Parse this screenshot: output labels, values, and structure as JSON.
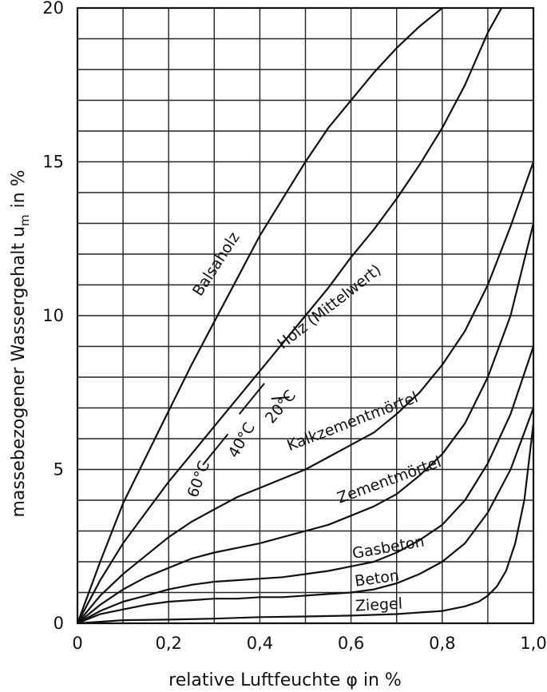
{
  "chart_data": {
    "type": "line",
    "xlabel": "relative Luftfeuchte φ in %",
    "ylabel": "massebezogener Wassergehalt u",
    "ylabel_sub": "m",
    "ylabel_unit": "in %",
    "xlim": [
      0,
      1.0
    ],
    "ylim": [
      0,
      20
    ],
    "x_ticks": [
      0,
      0.2,
      0.4,
      0.6,
      0.8,
      1.0
    ],
    "x_tick_labels": [
      "0",
      "0,2",
      "0,4",
      "0,6",
      "0,8",
      "1,0"
    ],
    "y_ticks": [
      0,
      5,
      10,
      15,
      20
    ],
    "y_tick_labels": [
      "0",
      "5",
      "10",
      "15",
      "20"
    ],
    "grid": true,
    "series": [
      {
        "name": "Balsaholz",
        "x": [
          0,
          0.05,
          0.1,
          0.15,
          0.2,
          0.25,
          0.3,
          0.35,
          0.4,
          0.45,
          0.5,
          0.55,
          0.6,
          0.65,
          0.7,
          0.75,
          0.8
        ],
        "y": [
          0,
          2.0,
          3.9,
          5.4,
          6.9,
          8.4,
          9.8,
          11.2,
          12.6,
          13.8,
          15.0,
          16.1,
          17.0,
          17.9,
          18.7,
          19.4,
          20.0
        ]
      },
      {
        "name": "Holz (Mittelwert)",
        "x": [
          0,
          0.05,
          0.1,
          0.15,
          0.2,
          0.25,
          0.3,
          0.35,
          0.4,
          0.45,
          0.5,
          0.55,
          0.6,
          0.65,
          0.7,
          0.75,
          0.8,
          0.85,
          0.9,
          0.93
        ],
        "y": [
          0,
          1.4,
          2.6,
          3.6,
          4.6,
          5.5,
          6.4,
          7.3,
          8.2,
          9.1,
          10.0,
          10.9,
          11.9,
          12.8,
          13.8,
          14.9,
          16.1,
          17.5,
          19.2,
          20.0
        ]
      },
      {
        "name": "Kalkzementmörtel",
        "x": [
          0,
          0.05,
          0.1,
          0.15,
          0.2,
          0.25,
          0.3,
          0.35,
          0.4,
          0.45,
          0.5,
          0.55,
          0.6,
          0.65,
          0.7,
          0.75,
          0.8,
          0.85,
          0.9,
          0.95,
          1.0
        ],
        "y": [
          0,
          0.9,
          1.6,
          2.2,
          2.8,
          3.3,
          3.7,
          4.1,
          4.4,
          4.7,
          5.0,
          5.4,
          5.8,
          6.2,
          6.8,
          7.5,
          8.4,
          9.5,
          11.0,
          12.9,
          15.0
        ]
      },
      {
        "name": "Zementmörtel",
        "x": [
          0,
          0.05,
          0.1,
          0.15,
          0.2,
          0.25,
          0.3,
          0.35,
          0.4,
          0.45,
          0.5,
          0.55,
          0.6,
          0.65,
          0.7,
          0.75,
          0.8,
          0.85,
          0.9,
          0.95,
          1.0
        ],
        "y": [
          0,
          0.6,
          1.1,
          1.5,
          1.8,
          2.1,
          2.3,
          2.45,
          2.6,
          2.8,
          3.0,
          3.2,
          3.5,
          3.8,
          4.2,
          4.8,
          5.5,
          6.5,
          8.0,
          10.0,
          13.0
        ]
      },
      {
        "name": "Gasbeton",
        "x": [
          0,
          0.05,
          0.1,
          0.15,
          0.2,
          0.25,
          0.3,
          0.35,
          0.4,
          0.45,
          0.5,
          0.55,
          0.6,
          0.65,
          0.7,
          0.75,
          0.8,
          0.85,
          0.9,
          0.95,
          1.0
        ],
        "y": [
          0,
          0.4,
          0.7,
          0.9,
          1.1,
          1.25,
          1.35,
          1.4,
          1.45,
          1.5,
          1.6,
          1.7,
          1.85,
          2.0,
          2.3,
          2.7,
          3.2,
          4.0,
          5.2,
          6.8,
          9.0
        ]
      },
      {
        "name": "Beton",
        "x": [
          0,
          0.05,
          0.1,
          0.15,
          0.2,
          0.25,
          0.3,
          0.35,
          0.4,
          0.45,
          0.5,
          0.55,
          0.6,
          0.65,
          0.7,
          0.75,
          0.8,
          0.85,
          0.9,
          0.95,
          1.0
        ],
        "y": [
          0,
          0.3,
          0.45,
          0.6,
          0.7,
          0.75,
          0.8,
          0.8,
          0.85,
          0.85,
          0.9,
          0.95,
          1.0,
          1.1,
          1.3,
          1.6,
          2.0,
          2.6,
          3.6,
          5.0,
          7.0
        ]
      },
      {
        "name": "Ziegel",
        "x": [
          0,
          0.05,
          0.1,
          0.2,
          0.3,
          0.4,
          0.5,
          0.6,
          0.7,
          0.75,
          0.8,
          0.85,
          0.88,
          0.9,
          0.92,
          0.94,
          0.96,
          0.98,
          1.0
        ],
        "y": [
          0,
          0.05,
          0.1,
          0.12,
          0.15,
          0.2,
          0.22,
          0.25,
          0.3,
          0.35,
          0.4,
          0.55,
          0.7,
          0.9,
          1.2,
          1.7,
          2.6,
          4.0,
          6.5
        ]
      }
    ],
    "annotations": [
      {
        "text": "60°C",
        "x": 0.29,
        "y": 5.2
      },
      {
        "text": "40°C",
        "x": 0.39,
        "y": 6.4
      },
      {
        "text": "20°C",
        "x": 0.48,
        "y": 7.4
      }
    ]
  }
}
